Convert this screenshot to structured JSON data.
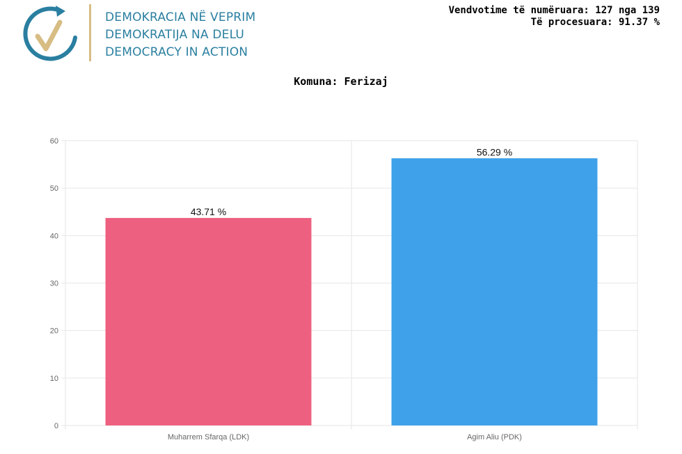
{
  "header": {
    "logo_lines": [
      "DEMOKRACIA NË VEPRIM",
      "DEMOKRATIJA NA DELU",
      "DEMOCRACY IN ACTION"
    ],
    "stats_line1": "Vendvotime të numëruara: 127 nga 139",
    "stats_line2": "Të procesuara: 91.37 %"
  },
  "colors": {
    "brand_teal": "#2a7fa0",
    "brand_gold": "#d7bd84",
    "bar_ldk": "#ee6080",
    "bar_pdk": "#3ea1ea",
    "grid": "#e6e6e6"
  },
  "chart_data": {
    "type": "bar",
    "title": "Komuna: Ferizaj",
    "categories": [
      "Muharrem Sfarqa (LDK)",
      "Agim Aliu (PDK)"
    ],
    "values": [
      43.71,
      56.29
    ],
    "data_labels": [
      "43.71 %",
      "56.29 %"
    ],
    "bar_colors": [
      "#ee6080",
      "#3ea1ea"
    ],
    "ylim": [
      0,
      60
    ],
    "yticks": [
      0,
      10,
      20,
      30,
      40,
      50,
      60
    ],
    "grid": true,
    "legend": "none"
  }
}
